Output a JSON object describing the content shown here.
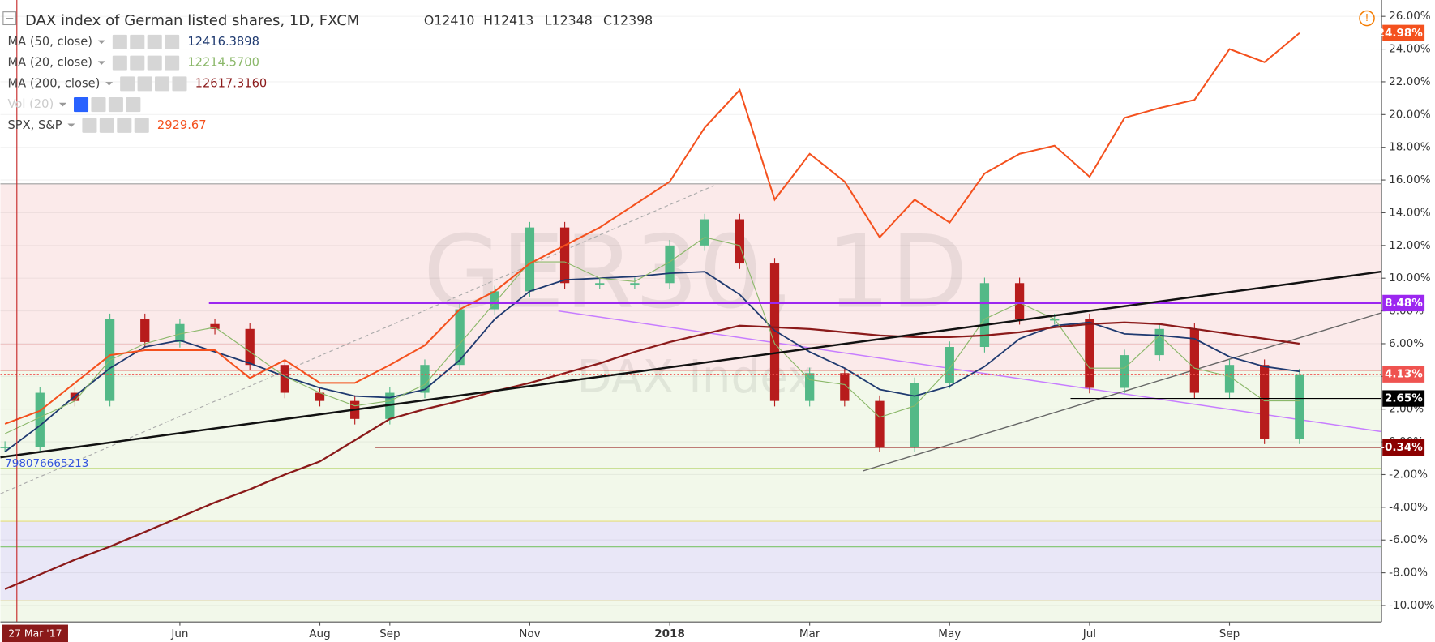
{
  "header": {
    "title": "DAX index of German listed shares, 1D, FXCM",
    "ohlc": [
      "O12410",
      "H12413",
      "L12348",
      "C12398"
    ],
    "watermark": {
      "symbol": "GER30, 1D",
      "description": "DAX Index"
    },
    "crosshair_value": "798076665213"
  },
  "chart_data": {
    "type": "line",
    "grid": true,
    "categories": [
      "27 Mar '17",
      null,
      null,
      null,
      null,
      "Jun",
      null,
      null,
      null,
      "Aug",
      null,
      "Sep",
      null,
      null,
      null,
      "Nov",
      null,
      null,
      null,
      "2018",
      null,
      null,
      null,
      "Mar",
      null,
      null,
      null,
      "May",
      null,
      null,
      null,
      "Jul",
      null,
      null,
      null,
      "Sep",
      null,
      null
    ],
    "ylim": [
      -11,
      27
    ],
    "yticks": [
      {
        "value": -10,
        "label": "-10.00%"
      },
      {
        "value": -8,
        "label": "-8.00%"
      },
      {
        "value": -6,
        "label": "-6.00%"
      },
      {
        "value": -4,
        "label": "-4.00%"
      },
      {
        "value": -2,
        "label": "-2.00%"
      },
      {
        "value": 0,
        "label": "0.00%"
      },
      {
        "value": 2,
        "label": "2.00%"
      },
      {
        "value": 4,
        "label": "4.00%"
      },
      {
        "value": 6,
        "label": "6.00%"
      },
      {
        "value": 8,
        "label": "8.00%"
      },
      {
        "value": 10,
        "label": "10.00%"
      },
      {
        "value": 12,
        "label": "12.00%"
      },
      {
        "value": 14,
        "label": "14.00%"
      },
      {
        "value": 16,
        "label": "16.00%"
      },
      {
        "value": 18,
        "label": "18.00%"
      },
      {
        "value": 20,
        "label": "20.00%"
      },
      {
        "value": 22,
        "label": "22.00%"
      },
      {
        "value": 24,
        "label": "24.00%"
      },
      {
        "value": 26,
        "label": "26.00%"
      }
    ],
    "main": {
      "up_color": "#53b987",
      "down_color": "#b71c1c",
      "values": [
        -0.3,
        3.0,
        2.5,
        7.5,
        6.1,
        7.2,
        6.9,
        4.7,
        3.0,
        2.5,
        1.4,
        3.0,
        4.7,
        8.1,
        9.2,
        13.1,
        9.7,
        9.7,
        9.7,
        12.0,
        13.6,
        10.9,
        2.5,
        4.2,
        2.5,
        -0.3,
        3.6,
        5.8,
        9.7,
        7.5,
        7.5,
        3.3,
        5.3,
        6.9,
        3.0,
        4.7,
        0.2,
        4.13
      ]
    },
    "series": [
      {
        "name": "MA (50, close)",
        "legend_value": "12416.3898",
        "color": "#1f3a70",
        "width": 1.6,
        "values": [
          -0.6,
          1.0,
          2.8,
          4.5,
          5.8,
          6.2,
          5.5,
          4.8,
          4.0,
          3.3,
          2.8,
          2.7,
          3.2,
          5.0,
          7.5,
          9.2,
          9.9,
          10.0,
          10.1,
          10.3,
          10.4,
          9.0,
          6.8,
          5.5,
          4.5,
          3.2,
          2.8,
          3.4,
          4.6,
          6.3,
          7.1,
          7.3,
          6.6,
          6.5,
          6.3,
          5.2,
          4.6,
          4.3
        ]
      },
      {
        "name": "MA (20, close)",
        "legend_value": "12214.5700",
        "color": "#8bb86a",
        "width": 1,
        "values": [
          0.5,
          1.5,
          2.5,
          5.0,
          6.0,
          6.6,
          7.0,
          5.5,
          4.0,
          3.0,
          2.2,
          2.5,
          3.5,
          6.0,
          8.5,
          11.0,
          11.0,
          10.0,
          9.8,
          11.0,
          12.5,
          12.0,
          6.0,
          3.8,
          3.5,
          1.5,
          2.2,
          4.5,
          7.5,
          8.5,
          7.5,
          4.5,
          4.5,
          6.5,
          4.5,
          4.0,
          2.5,
          2.5
        ]
      },
      {
        "name": "MA (200, close)",
        "legend_value": "12617.3160",
        "color": "#8b1a1a",
        "width": 2,
        "values": [
          -9.0,
          -8.1,
          -7.2,
          -6.4,
          -5.5,
          -4.6,
          -3.7,
          -2.9,
          -2.0,
          -1.2,
          0.1,
          1.4,
          2.0,
          2.5,
          3.1,
          3.6,
          4.2,
          4.8,
          5.5,
          6.1,
          6.6,
          7.1,
          7.0,
          6.9,
          6.7,
          6.5,
          6.4,
          6.4,
          6.5,
          6.7,
          7.0,
          7.2,
          7.3,
          7.2,
          6.9,
          6.6,
          6.3,
          6.0
        ]
      },
      {
        "name": "SPX, S&P",
        "legend_value": "2929.67",
        "color": "#f4511e",
        "width": 1.8,
        "values": [
          1.1,
          1.9,
          3.6,
          5.3,
          5.6,
          5.6,
          5.6,
          3.9,
          5.0,
          3.6,
          3.6,
          4.7,
          5.9,
          8.1,
          9.2,
          10.9,
          12.0,
          13.1,
          14.5,
          15.9,
          19.2,
          21.5,
          14.8,
          17.6,
          15.9,
          12.5,
          14.8,
          13.4,
          16.4,
          17.6,
          18.1,
          16.2,
          19.8,
          20.4,
          20.9,
          24.0,
          23.2,
          24.98
        ]
      }
    ],
    "muted_legend": "Vol (20)",
    "price_labels": [
      {
        "value": 24.98,
        "label": "24.98%",
        "color": "#f4511e"
      },
      {
        "value": 8.48,
        "label": "8.48%",
        "color": "#9c27f0"
      },
      {
        "value": 4.13,
        "label": "4.13%",
        "color": "#ef5350"
      },
      {
        "value": 2.65,
        "label": "2.65%",
        "color": "#000000"
      },
      {
        "value": -0.34,
        "label": "-0.34%",
        "color": "#8b0000"
      }
    ]
  }
}
